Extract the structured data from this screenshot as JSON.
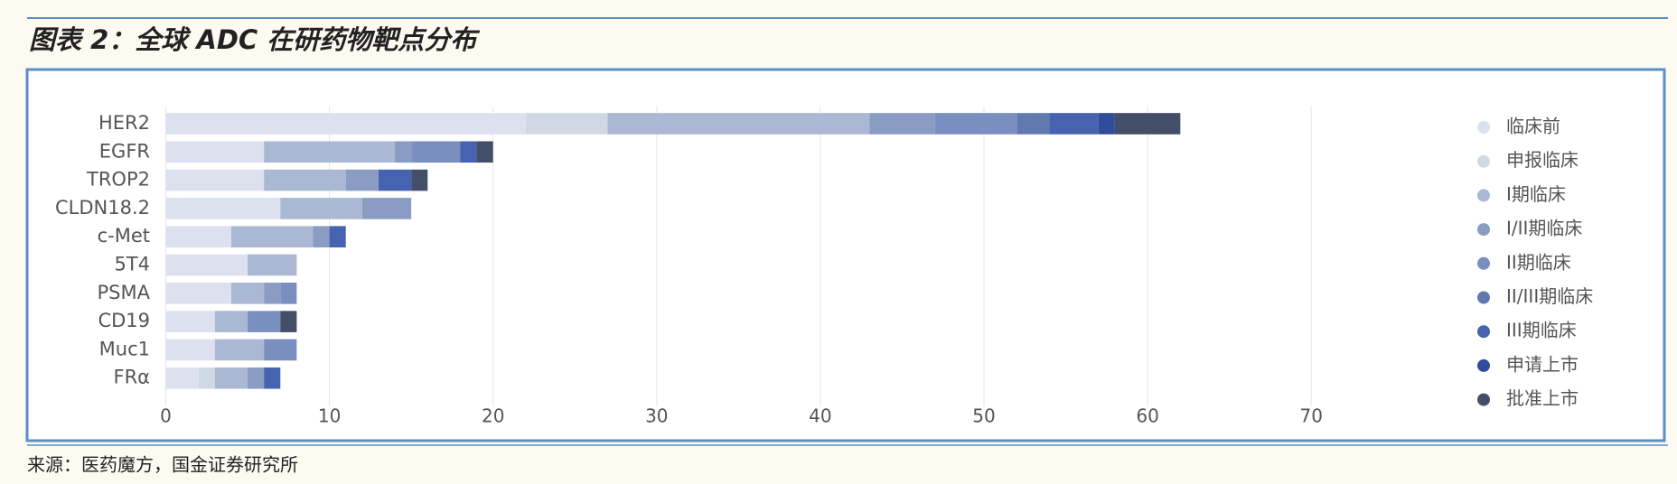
{
  "title": "图表 2：全球 ADC 在研药物靶点分布",
  "source": "来源：医药魔方，国金证券研究所",
  "chart_data": {
    "type": "bar",
    "orientation": "horizontal",
    "stacked": true,
    "categories": [
      "HER2",
      "EGFR",
      "TROP2",
      "CLDN18.2",
      "c-Met",
      "5T4",
      "PSMA",
      "CD19",
      "Muc1",
      "FRα"
    ],
    "series": [
      {
        "name": "临床前",
        "color": "#dde1ef",
        "values": [
          22,
          6,
          6,
          7,
          4,
          5,
          4,
          3,
          3,
          2
        ]
      },
      {
        "name": "申报临床",
        "color": "#d0d8e4",
        "values": [
          5,
          0,
          0,
          0,
          0,
          0,
          0,
          0,
          0,
          1
        ]
      },
      {
        "name": "I期临床",
        "color": "#aab8d4",
        "values": [
          16,
          8,
          5,
          5,
          5,
          3,
          2,
          2,
          3,
          2
        ]
      },
      {
        "name": "I/II期临床",
        "color": "#8a9cc2",
        "values": [
          4,
          1,
          2,
          3,
          1,
          0,
          1,
          0,
          0,
          1
        ]
      },
      {
        "name": "II期临床",
        "color": "#7a8fbf",
        "values": [
          5,
          3,
          0,
          0,
          0,
          0,
          1,
          2,
          2,
          0
        ]
      },
      {
        "name": "II/III期临床",
        "color": "#6279b0",
        "values": [
          2,
          0,
          0,
          0,
          0,
          0,
          0,
          0,
          0,
          0
        ]
      },
      {
        "name": "III期临床",
        "color": "#4563b0",
        "values": [
          3,
          1,
          2,
          0,
          1,
          0,
          0,
          0,
          0,
          1
        ]
      },
      {
        "name": "申请上市",
        "color": "#2f4d9a",
        "values": [
          1,
          0,
          0,
          0,
          0,
          0,
          0,
          0,
          0,
          0
        ]
      },
      {
        "name": "批准上市",
        "color": "#434f68",
        "values": [
          4,
          1,
          1,
          0,
          0,
          0,
          0,
          1,
          0,
          0
        ]
      }
    ],
    "xlim": [
      0,
      70
    ],
    "xticks": [
      0,
      10,
      20,
      30,
      40,
      50,
      60,
      70
    ],
    "grid": true,
    "legend": "right"
  }
}
